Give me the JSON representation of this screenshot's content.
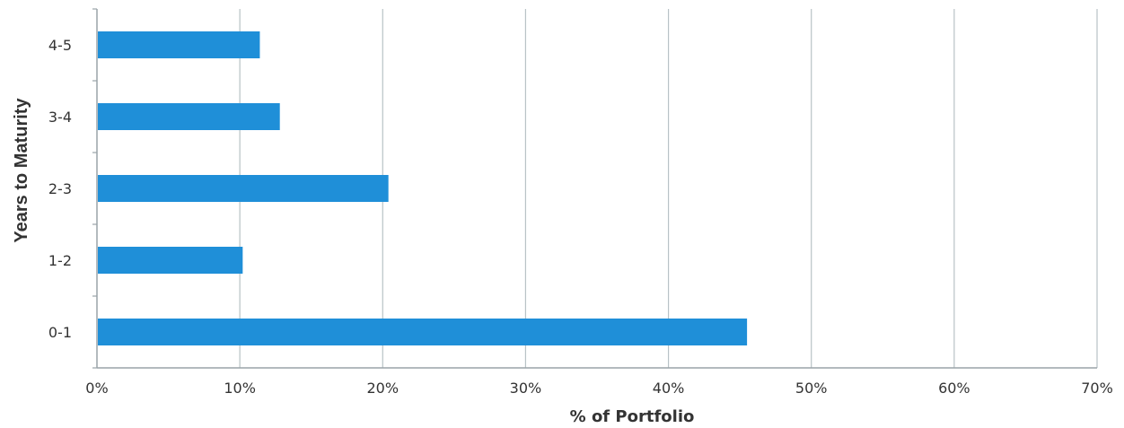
{
  "chart_data": {
    "type": "bar",
    "orientation": "horizontal",
    "categories": [
      "0-1",
      "1-2",
      "2-3",
      "3-4",
      "4-5"
    ],
    "values": [
      45.5,
      10.2,
      20.4,
      12.8,
      11.4
    ],
    "xlabel": "% of Portfolio",
    "ylabel": "Years to Maturity",
    "xlim": [
      0,
      70
    ],
    "xticks": [
      0,
      10,
      20,
      30,
      40,
      50,
      60,
      70
    ],
    "xtick_labels": [
      "0%",
      "10%",
      "20%",
      "30%",
      "40%",
      "50%",
      "60%",
      "70%"
    ],
    "grid": "vertical",
    "legend": "none",
    "bar_color": "#1f8fd8"
  }
}
